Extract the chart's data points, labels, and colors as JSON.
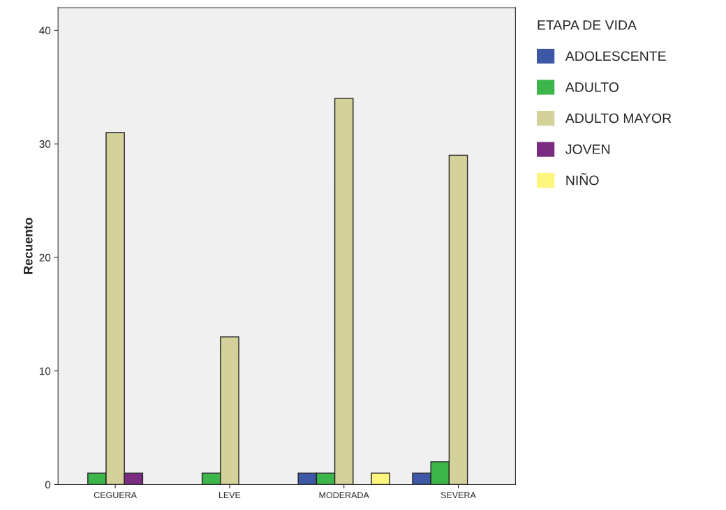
{
  "chart_data": {
    "type": "bar",
    "ylabel": "Recuento",
    "legend_title": "ETAPA DE VIDA",
    "categories": [
      "CEGUERA",
      "LEVE",
      "MODERADA",
      "SEVERA"
    ],
    "series": [
      {
        "name": "ADOLESCENTE",
        "color": "#3d58a7",
        "values": [
          null,
          null,
          1,
          1
        ]
      },
      {
        "name": "ADULTO",
        "color": "#3cb54a",
        "values": [
          1,
          1,
          1,
          2
        ]
      },
      {
        "name": "ADULTO MAYOR",
        "color": "#d5d19a",
        "values": [
          31,
          13,
          34,
          29
        ]
      },
      {
        "name": "JOVEN",
        "color": "#7a2d80",
        "values": [
          1,
          null,
          null,
          null
        ]
      },
      {
        "name": "NIÑO",
        "color": "#fdf57e",
        "values": [
          null,
          null,
          1,
          null
        ]
      }
    ],
    "ylim": [
      0,
      42
    ],
    "yticks": [
      0,
      10,
      20,
      30,
      40
    ],
    "grid": false,
    "legend": "right"
  }
}
